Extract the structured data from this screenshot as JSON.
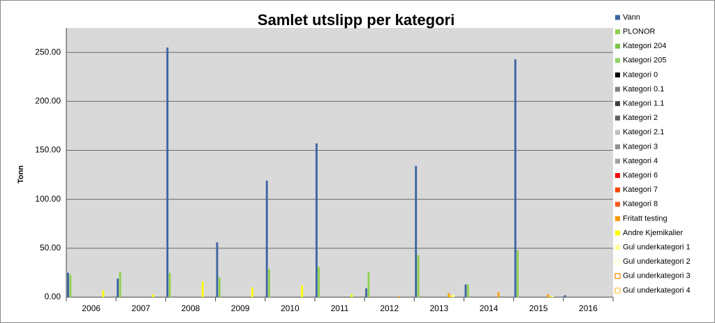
{
  "chart_data": {
    "type": "bar",
    "title": "Samlet utslipp per kategori",
    "y_label": "Tonn",
    "categories": [
      "2006",
      "2007",
      "2008",
      "2009",
      "2010",
      "2011",
      "2012",
      "2013",
      "2014",
      "2015",
      "2016"
    ],
    "ylim": [
      0,
      275
    ],
    "yticks": [
      {
        "value": 0,
        "label": "0.00"
      },
      {
        "value": 50,
        "label": "50.00"
      },
      {
        "value": 100,
        "label": "100.00"
      },
      {
        "value": 150,
        "label": "150.00"
      },
      {
        "value": 200,
        "label": "200.00"
      },
      {
        "value": 250,
        "label": "250.00"
      }
    ],
    "grid": true,
    "legend": "right",
    "series": [
      {
        "name": "Vann",
        "color": "#3c64a0",
        "values": [
          25,
          19,
          255,
          56,
          119,
          157,
          9,
          134,
          13,
          243,
          2
        ]
      },
      {
        "name": "PLONOR",
        "color": "#92d050",
        "values": [
          23,
          26,
          25,
          20,
          29,
          31,
          26,
          43,
          13,
          48,
          0
        ]
      },
      {
        "name": "Kategori 204",
        "color": "#7cc444",
        "values": [
          0,
          0,
          0,
          0,
          0,
          0,
          0,
          0,
          0,
          0,
          0
        ]
      },
      {
        "name": "Kategori 205",
        "color": "#8fd468",
        "values": [
          0,
          0,
          0,
          0,
          0,
          0,
          0,
          0,
          0,
          0,
          0
        ]
      },
      {
        "name": "Kategori 0",
        "color": "#000000",
        "values": [
          0,
          0,
          0,
          0,
          0,
          0,
          0,
          0,
          0,
          0,
          0
        ]
      },
      {
        "name": "Kategori 0.1",
        "color": "#808080",
        "values": [
          0,
          0,
          0,
          0,
          0,
          0,
          0,
          0,
          0,
          0,
          0
        ]
      },
      {
        "name": "Kategori 1.1",
        "color": "#404040",
        "values": [
          0,
          0,
          0,
          0,
          0,
          0,
          0,
          0,
          0,
          0,
          0
        ]
      },
      {
        "name": "Kategori 2",
        "color": "#606060",
        "values": [
          0,
          0,
          0,
          0,
          0,
          0,
          0,
          0,
          0,
          0,
          0
        ]
      },
      {
        "name": "Kategori 2.1",
        "color": "#c0c0c0",
        "values": [
          0,
          0,
          0,
          0,
          0,
          0,
          0,
          0,
          0,
          0,
          0
        ]
      },
      {
        "name": "Kategori 3",
        "color": "#909090",
        "values": [
          0,
          0,
          0,
          0,
          0,
          0,
          0,
          0,
          0,
          0,
          0
        ]
      },
      {
        "name": "Kategori 4",
        "color": "#a0a0a0",
        "values": [
          0,
          0,
          0,
          0,
          0,
          0,
          0,
          0,
          0,
          0,
          0
        ]
      },
      {
        "name": "Kategori 6",
        "color": "#ff0000",
        "values": [
          0,
          0,
          0,
          0,
          0,
          0,
          0,
          0,
          0,
          0,
          0
        ]
      },
      {
        "name": "Kategori 7",
        "color": "#ff4500",
        "values": [
          0,
          0,
          0,
          0,
          0,
          0,
          0,
          0,
          0,
          0,
          0
        ]
      },
      {
        "name": "Kategori 8",
        "color": "#ff5a1f",
        "values": [
          0,
          0,
          0,
          0,
          0,
          0,
          0,
          0,
          0,
          0,
          0
        ]
      },
      {
        "name": "Fritatt testing",
        "color": "#ff9900",
        "values": [
          0,
          0,
          0,
          0,
          0,
          0,
          1,
          4,
          5,
          3,
          0
        ]
      },
      {
        "name": "Andre Kjemikalier",
        "color": "#ffff00",
        "values": [
          7,
          3,
          16,
          10,
          12,
          3,
          0,
          2,
          0,
          1,
          0
        ]
      },
      {
        "name": "Gul underkategori 1",
        "color": "#ffff99",
        "values": [
          0,
          0,
          0,
          0,
          0,
          0,
          0,
          3,
          0,
          1,
          0
        ]
      },
      {
        "name": "Gul underkategori 2",
        "color": "#ffffcc",
        "values": [
          0,
          0,
          0,
          0,
          0,
          0,
          0,
          0,
          0,
          0,
          0
        ]
      },
      {
        "name": "Gul underkategori 3",
        "color": "#ff9933",
        "values": [
          0,
          0,
          0,
          0,
          0,
          0,
          0,
          0,
          0,
          0,
          0
        ]
      },
      {
        "name": "Gul underkategori 4",
        "color": "#ffcc66",
        "values": [
          0,
          0,
          0,
          0,
          0,
          0,
          0,
          0,
          0,
          0,
          0
        ]
      }
    ]
  }
}
